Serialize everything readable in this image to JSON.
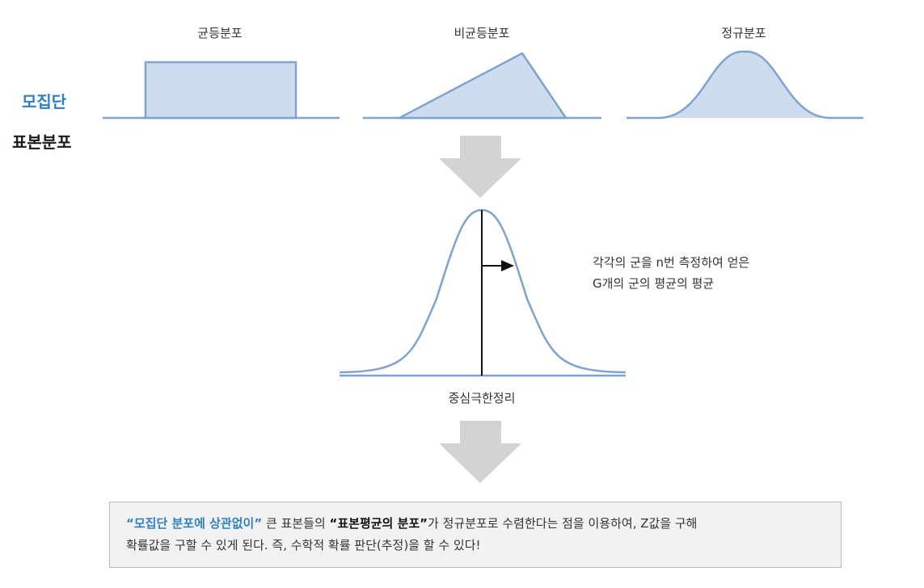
{
  "distributions": {
    "uniform_title": "균등분포",
    "nonuniform_title": "비균등분포",
    "normal_title": "정규분포"
  },
  "side_labels": {
    "population": "모집단",
    "sampling_distribution": "표본분포"
  },
  "annotation": {
    "line1": "각각의 군을 n번 측정하여 얻은",
    "line2": "G개의 군의 평균의 평균"
  },
  "clt_label": "중심극한정리",
  "summary": {
    "q1_open": "“",
    "phrase_blue": "모집단 분포에 상관없이",
    "q1_close": "”",
    "text_a": " 큰 표본들의 ",
    "q2_open": "“",
    "phrase_bold": "표본평균의 분포",
    "q2_close": "”",
    "text_b": "가 정규분포로 수렴한다는 점을 이용하여, Z값을 구해",
    "line2": "확률값을 구할 수 있게 된다. 즉, 수학적 확률 판단(추정)을 할 수 있다!"
  },
  "colors": {
    "curve": "#7ea3d0",
    "fill": "#cfdcef",
    "arrow": "#d3d3d3",
    "accent_blue": "#2e80c0"
  }
}
